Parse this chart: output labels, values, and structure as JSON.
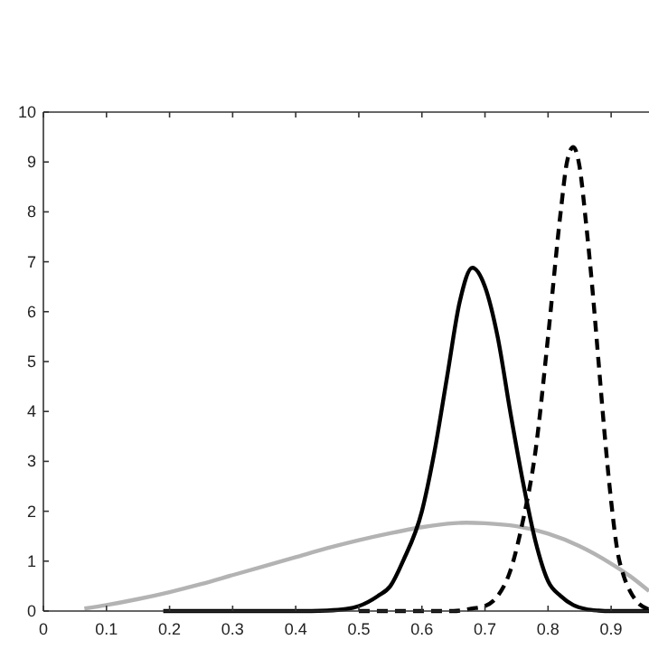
{
  "chart_data": {
    "type": "line",
    "xlim": [
      0,
      0.96
    ],
    "ylim": [
      0,
      10
    ],
    "xticks": [
      0,
      0.1,
      0.2,
      0.3,
      0.4,
      0.5,
      0.6,
      0.7,
      0.8,
      0.9
    ],
    "yticks": [
      0,
      1,
      2,
      3,
      4,
      5,
      6,
      7,
      8,
      9,
      10
    ],
    "grid": false,
    "series": [
      {
        "color": "#b3b3b3",
        "line_style": "solid",
        "x": [
          0.065,
          0.1,
          0.15,
          0.2,
          0.25,
          0.3,
          0.35,
          0.4,
          0.45,
          0.5,
          0.55,
          0.6,
          0.65,
          0.67,
          0.7,
          0.75,
          0.8,
          0.85,
          0.9,
          0.93,
          0.96
        ],
        "values": [
          0.05,
          0.12,
          0.24,
          0.38,
          0.54,
          0.72,
          0.9,
          1.08,
          1.26,
          1.42,
          1.56,
          1.68,
          1.76,
          1.77,
          1.76,
          1.7,
          1.55,
          1.3,
          0.95,
          0.7,
          0.4
        ]
      },
      {
        "color": "#000000",
        "line_style": "solid",
        "x": [
          0.19,
          0.3,
          0.4,
          0.45,
          0.48,
          0.5,
          0.53,
          0.55,
          0.57,
          0.6,
          0.62,
          0.64,
          0.66,
          0.68,
          0.7,
          0.72,
          0.74,
          0.76,
          0.78,
          0.8,
          0.82,
          0.84,
          0.86,
          0.88,
          0.9,
          0.96
        ],
        "values": [
          0,
          0,
          0,
          0.01,
          0.04,
          0.1,
          0.3,
          0.5,
          1.0,
          2.0,
          3.2,
          4.7,
          6.2,
          6.88,
          6.5,
          5.5,
          4.0,
          2.6,
          1.4,
          0.6,
          0.3,
          0.12,
          0.04,
          0.01,
          0,
          0
        ]
      },
      {
        "color": "#000000",
        "line_style": "dashed",
        "x": [
          0.5,
          0.6,
          0.65,
          0.68,
          0.7,
          0.72,
          0.74,
          0.76,
          0.78,
          0.8,
          0.82,
          0.83,
          0.84,
          0.85,
          0.86,
          0.87,
          0.88,
          0.89,
          0.9,
          0.91,
          0.92,
          0.93,
          0.94,
          0.96
        ],
        "values": [
          0,
          0,
          0,
          0.05,
          0.1,
          0.3,
          0.8,
          1.8,
          3.2,
          5.5,
          8.0,
          9.0,
          9.3,
          8.9,
          7.8,
          6.5,
          5.0,
          3.5,
          2.2,
          1.2,
          0.7,
          0.4,
          0.2,
          0.03
        ]
      }
    ]
  }
}
